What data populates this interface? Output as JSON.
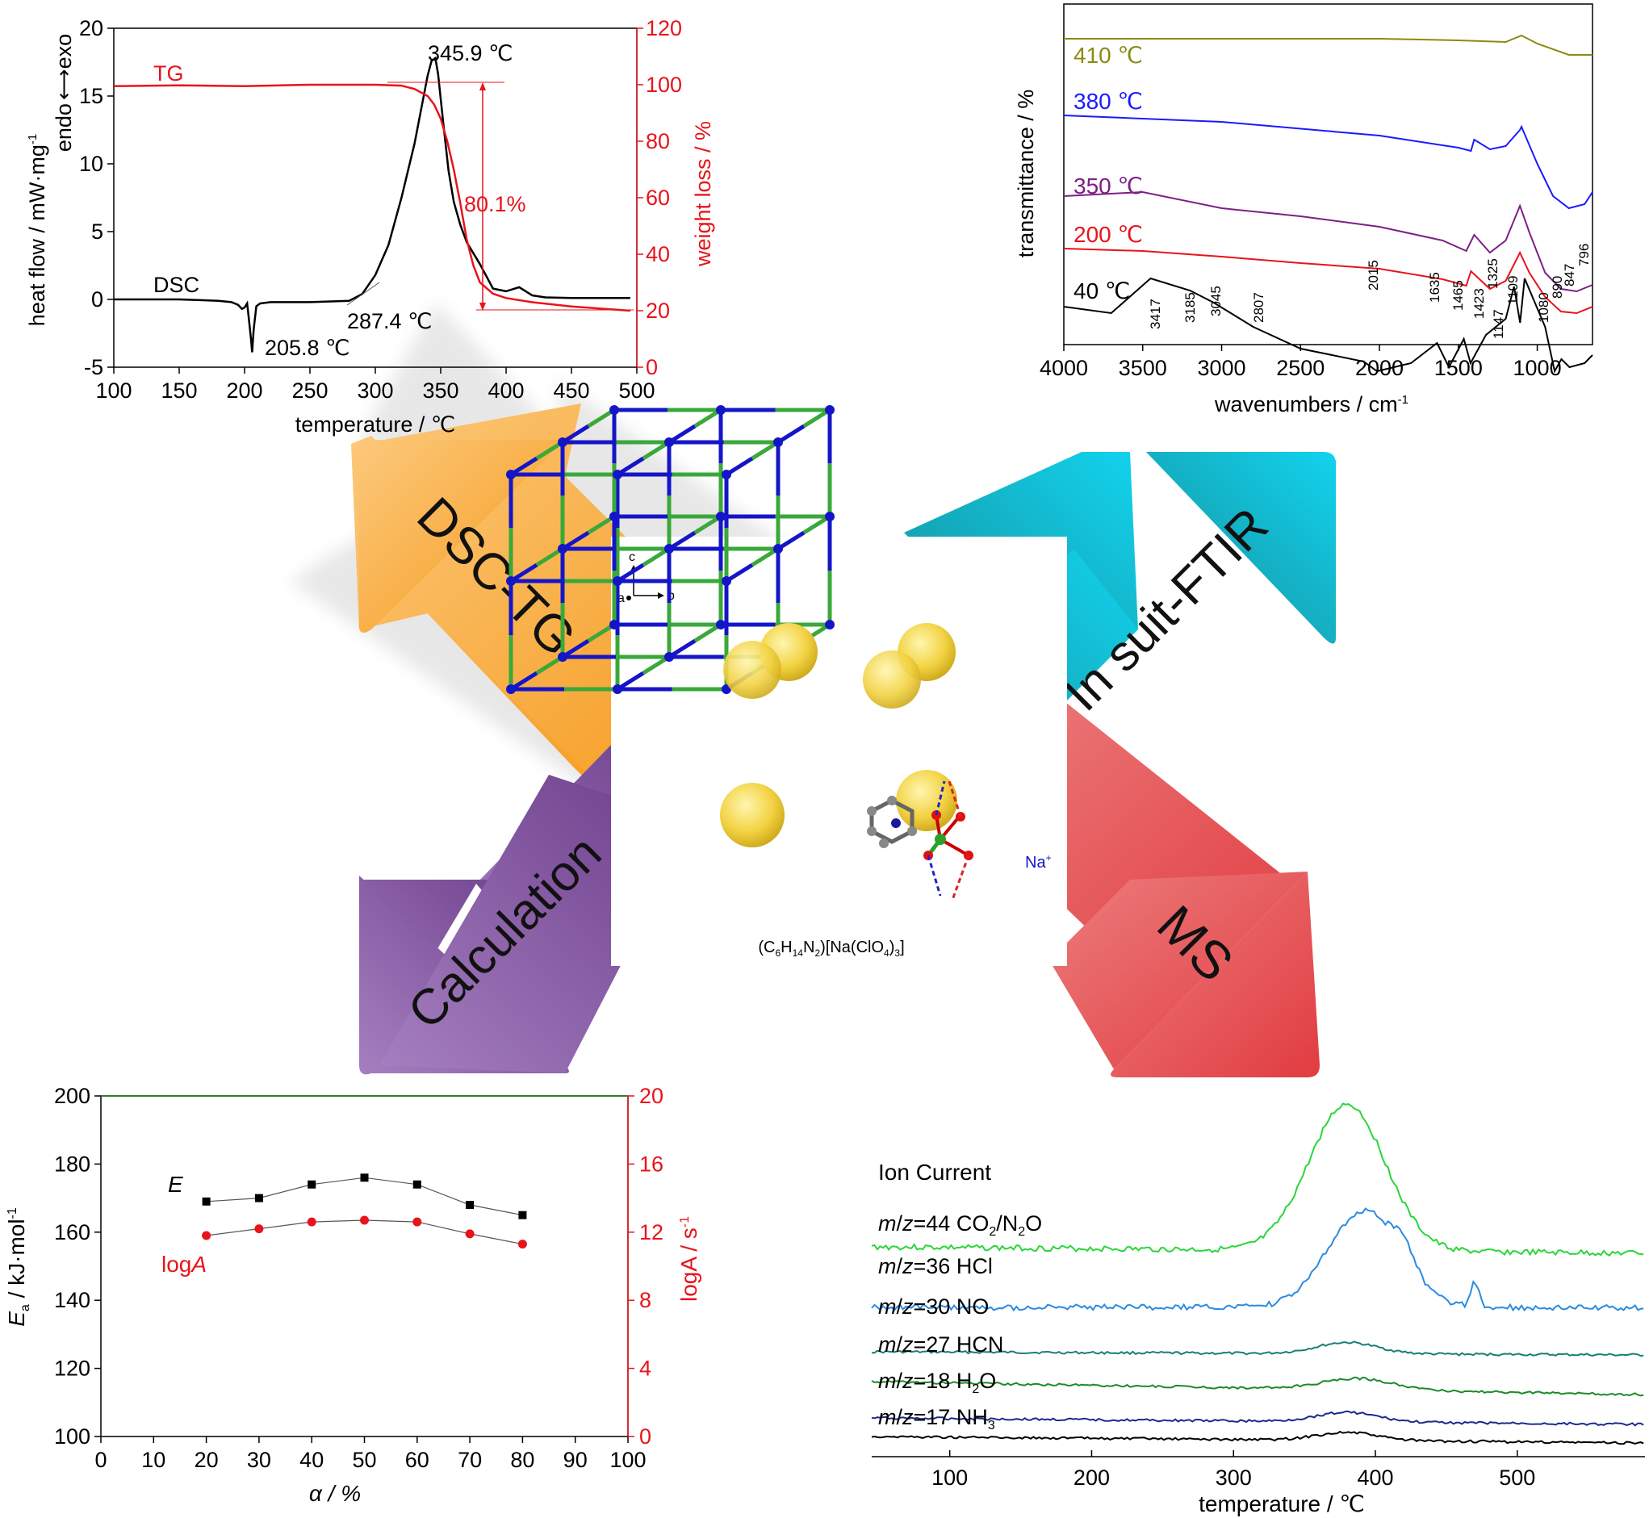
{
  "colors": {
    "black": "#000000",
    "red": "#e8141a",
    "blue": "#1a1aff",
    "purple": "#7d1f86",
    "olive": "#8a8a12",
    "green_ms": "#2bd53a",
    "blue_ms": "#2a8be0",
    "teal_ms": "#1a7f72",
    "green2_ms": "#1d8a2a",
    "navy_ms": "#1c2a8a",
    "arrow_orange": "#f7a73b",
    "arrow_teal": "#19b7cf",
    "arrow_purple": "#8a5aa8",
    "arrow_red": "#e0474b",
    "lattice_blue": "#1515c8",
    "lattice_green": "#3aa83a",
    "sphere_yellow": "#f2d64a"
  },
  "arrows": {
    "top_left": "DSC-TG",
    "top_right": "In suit-FTIR",
    "bottom_left": "Calculation",
    "bottom_right": "MS"
  },
  "structure": {
    "formula_parts": [
      "(C",
      "6",
      "H",
      "14",
      "N",
      "2",
      ")[Na(ClO",
      "4",
      ")",
      "3",
      "]"
    ],
    "na_label": "Na",
    "na_sup": "+",
    "axis_c": "c",
    "axis_a": "a",
    "axis_b": "b"
  },
  "chart_data": [
    {
      "id": "dsc_tg",
      "type": "line",
      "xlabel": "temperature / ℃",
      "ylabel_left": "heat flow / mW·mg",
      "ylabel_left_sup": "-1",
      "ylabel_right": "weight loss / %",
      "endo_exo": {
        "endo": "endo",
        "exo": "exo"
      },
      "xlim": [
        100,
        500
      ],
      "xticks": [
        100,
        150,
        200,
        250,
        300,
        350,
        400,
        450,
        500
      ],
      "ylim_left": [
        -5,
        20
      ],
      "yticks_left": [
        -5,
        0,
        5,
        10,
        15,
        20
      ],
      "ylim_right": [
        0,
        120
      ],
      "yticks_right": [
        0,
        20,
        40,
        60,
        80,
        100,
        120
      ],
      "series": [
        {
          "name": "DSC",
          "axis": "left",
          "color": "#000000",
          "x": [
            100,
            150,
            180,
            190,
            195,
            198,
            200,
            202,
            203,
            205,
            205.8,
            207,
            209,
            212,
            220,
            250,
            280,
            290,
            300,
            310,
            320,
            330,
            335,
            340,
            343,
            345.9,
            348,
            352,
            356,
            360,
            365,
            370,
            380,
            390,
            400,
            410,
            415,
            420,
            430,
            450,
            480,
            495
          ],
          "y": [
            0,
            0,
            -0.1,
            -0.2,
            -0.4,
            -0.7,
            -0.6,
            -0.3,
            -1.2,
            -3.0,
            -3.9,
            -2.2,
            -0.5,
            -0.3,
            -0.2,
            -0.2,
            -0.1,
            0.4,
            1.8,
            4.0,
            7.5,
            11.5,
            14.0,
            16.5,
            17.6,
            17.8,
            16.6,
            13.0,
            9.5,
            7.2,
            5.5,
            4.2,
            2.6,
            0.8,
            0.6,
            0.9,
            0.6,
            0.3,
            0.15,
            0.1,
            0.1,
            0.1
          ]
        },
        {
          "name": "TG",
          "axis": "right",
          "color": "#e8141a",
          "x": [
            100,
            150,
            200,
            250,
            300,
            320,
            330,
            340,
            345,
            350,
            355,
            360,
            365,
            370,
            375,
            380,
            390,
            400,
            420,
            450,
            480,
            495
          ],
          "y": [
            99.5,
            99.8,
            99.5,
            100,
            100,
            99.7,
            98.5,
            96,
            93,
            88,
            80,
            70,
            58,
            45,
            36,
            30,
            26,
            24.5,
            23,
            21.5,
            20.5,
            20
          ]
        }
      ],
      "annotations": [
        {
          "text": "345.9 ℃",
          "x": 346,
          "y": 17.8
        },
        {
          "text": "287.4 ℃",
          "x": 287.4,
          "y": 0
        },
        {
          "text": "205.8 ℃",
          "x": 205.8,
          "y": -3.9
        },
        {
          "text": "80.1%",
          "x": 410,
          "y": 60
        }
      ],
      "series_labels": [
        "TG",
        "DSC"
      ]
    },
    {
      "id": "ftir",
      "type": "line",
      "xlabel": "wavenumbers / cm",
      "xlabel_sup": "-1",
      "ylabel": "transmittance / %",
      "xlim": [
        4000,
        650
      ],
      "xticks": [
        4000,
        3500,
        3000,
        2500,
        2000,
        1500,
        1000
      ],
      "series": [
        {
          "name": "410 ℃",
          "color": "#8a8a12"
        },
        {
          "name": "380 ℃",
          "color": "#1a1aff"
        },
        {
          "name": "350 ℃",
          "color": "#7d1f86"
        },
        {
          "name": "200 ℃",
          "color": "#e8141a"
        },
        {
          "name": "40 ℃",
          "color": "#000000"
        }
      ],
      "peak_labels": [
        "3417",
        "3185",
        "3045",
        "2807",
        "2015",
        "1635",
        "1465",
        "1423",
        "1325",
        "1147",
        "1109",
        "1080",
        "890",
        "847",
        "796"
      ]
    },
    {
      "id": "kinetics",
      "type": "scatter",
      "xlabel": "α / %",
      "ylabel_left": "E",
      "ylabel_left_sub": "a",
      "ylabel_left_rest": " / kJ·mol",
      "ylabel_left_sup": "-1",
      "ylabel_right": "logA / s",
      "ylabel_right_sup": "-1",
      "xlim": [
        0,
        100
      ],
      "xticks": [
        0,
        10,
        20,
        30,
        40,
        50,
        60,
        70,
        80,
        90,
        100
      ],
      "ylim_left": [
        100,
        200
      ],
      "yticks_left": [
        100,
        120,
        140,
        160,
        180,
        200
      ],
      "ylim_right": [
        0,
        20
      ],
      "yticks_right": [
        0,
        4,
        8,
        12,
        16,
        20
      ],
      "series": [
        {
          "name": "E",
          "axis": "left",
          "color": "#000000",
          "marker": "square",
          "x": [
            20,
            30,
            40,
            50,
            60,
            70,
            80
          ],
          "y": [
            169,
            170,
            174,
            176,
            174,
            168,
            165
          ]
        },
        {
          "name": "logA",
          "axis": "right",
          "color": "#e8141a",
          "marker": "circle",
          "x": [
            20,
            30,
            40,
            50,
            60,
            70,
            80
          ],
          "y": [
            11.8,
            12.2,
            12.6,
            12.7,
            12.6,
            11.9,
            11.3
          ]
        }
      ],
      "legend_labels": {
        "E": "E",
        "logA_pre": "log",
        "logA_it": "A"
      }
    },
    {
      "id": "ms",
      "type": "line",
      "title": "Ion Current",
      "xlabel": "temperature / ℃",
      "xlim": [
        45,
        590
      ],
      "xticks": [
        100,
        200,
        300,
        400,
        500
      ],
      "series": [
        {
          "name": "m/z=44 CO2/N2O",
          "prefix": "m",
          "mid": "/",
          "z": "z",
          "rest": "=44 CO",
          "sub1": "2",
          "rest2": "/N",
          "sub2": "2",
          "rest3": "O",
          "color": "#2bd53a"
        },
        {
          "name": "m/z=36 HCl",
          "prefix": "m",
          "mid": "/",
          "z": "z",
          "rest": "=36 HCl",
          "color": "#2a8be0"
        },
        {
          "name": "m/z=30 NO",
          "prefix": "m",
          "mid": "/",
          "z": "z",
          "rest": "=30 NO",
          "color": "#1a7f72"
        },
        {
          "name": "m/z=27 HCN",
          "prefix": "m",
          "mid": "/",
          "z": "z",
          "rest": "=27 HCN",
          "color": "#1d8a2a"
        },
        {
          "name": "m/z=18 H2O",
          "prefix": "m",
          "mid": "/",
          "z": "z",
          "rest": "=18 H",
          "sub1": "2",
          "rest2": "O",
          "color": "#1c2a8a"
        },
        {
          "name": "m/z=17 NH3",
          "prefix": "m",
          "mid": "/",
          "z": "z",
          "rest": "=17 NH",
          "sub1": "3",
          "color": "#000000"
        }
      ]
    }
  ]
}
